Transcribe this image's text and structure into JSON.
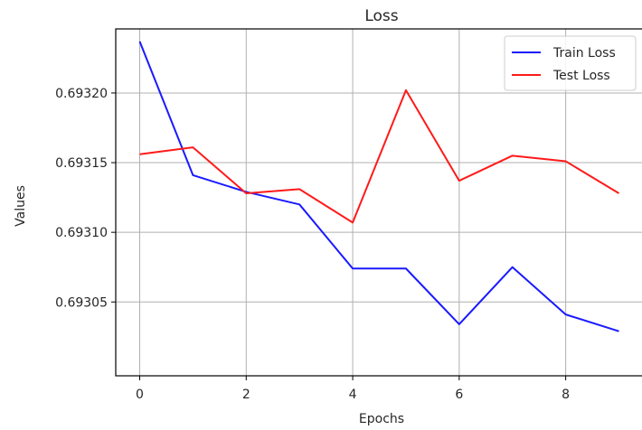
{
  "chart_data": {
    "type": "line",
    "title": "Loss",
    "xlabel": "Epochs",
    "ylabel": "Values",
    "x": [
      0,
      1,
      2,
      3,
      4,
      5,
      6,
      7,
      8,
      9
    ],
    "xticks": [
      0,
      2,
      4,
      6,
      8
    ],
    "xtick_labels": [
      "0",
      "2",
      "4",
      "6",
      "8"
    ],
    "yticks": [
      0.69305,
      0.6931,
      0.69315,
      0.6932
    ],
    "ytick_labels": [
      "0.69305",
      "0.69310",
      "0.69315",
      "0.69320"
    ],
    "xlim": [
      -0.45,
      9.45
    ],
    "ylim": [
      0.692997,
      0.693246
    ],
    "grid": true,
    "legend_position": "top-right",
    "series": [
      {
        "name": "Train Loss",
        "color": "#1a1aff",
        "values": [
          0.693237,
          0.693141,
          0.693129,
          0.69312,
          0.693074,
          0.693074,
          0.693034,
          0.693075,
          0.693041,
          0.693029
        ]
      },
      {
        "name": "Test Loss",
        "color": "#ff1a1a",
        "values": [
          0.693156,
          0.693161,
          0.693128,
          0.693131,
          0.693107,
          0.693202,
          0.693137,
          0.693155,
          0.693151,
          0.693128
        ]
      }
    ]
  }
}
